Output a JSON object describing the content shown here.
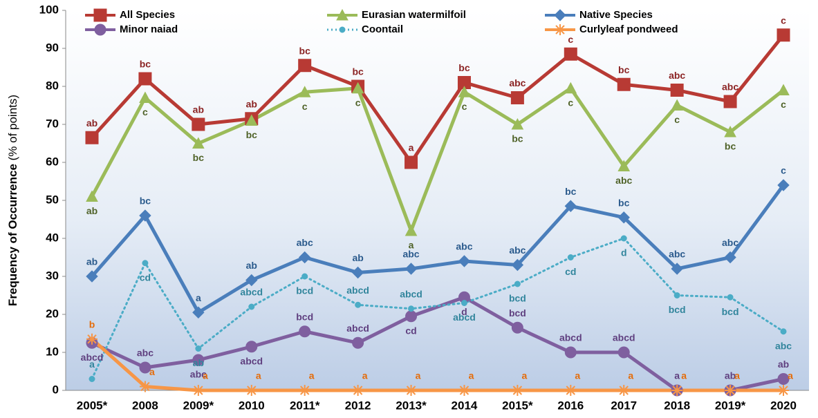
{
  "chart_data": {
    "type": "line",
    "ylabel": "Frequency of Occurrence",
    "ylabel_note": "(% of points)",
    "categories": [
      "2005*",
      "2008",
      "2009*",
      "2010",
      "2011*",
      "2012",
      "2013*",
      "2014",
      "2015*",
      "2016",
      "2017",
      "2018",
      "2019*",
      "2020"
    ],
    "ylim": [
      0,
      100
    ],
    "yticks": [
      0,
      10,
      20,
      30,
      40,
      50,
      60,
      70,
      80,
      90,
      100
    ],
    "grid": false,
    "series": [
      {
        "name": "All Species",
        "color": "#b83a34",
        "marker": "square",
        "letter_color": "#8b2323",
        "values": [
          66.5,
          82,
          70,
          71.5,
          85.5,
          80,
          60,
          81,
          77,
          88.5,
          80.5,
          79,
          76,
          93.5
        ],
        "letters": [
          "ab",
          "bc",
          "ab",
          "ab",
          "bc",
          "bc",
          "a",
          "bc",
          "abc",
          "c",
          "bc",
          "abc",
          "abc",
          "c"
        ]
      },
      {
        "name": "Eurasian watermilfoil",
        "color": "#9bbb59",
        "marker": "triangle",
        "letter_color": "#4f6228",
        "values": [
          51,
          77,
          65,
          71,
          78.5,
          79.5,
          42,
          78.5,
          70,
          79.5,
          59,
          75,
          68,
          79
        ],
        "letters": [
          "ab",
          "c",
          "bc",
          "bc",
          "c",
          "c",
          "a",
          "c",
          "bc",
          "c",
          "abc",
          "c",
          "bc",
          "c"
        ]
      },
      {
        "name": "Native Species",
        "color": "#4a7ebb",
        "marker": "diamond",
        "letter_color": "#2a5a8c",
        "values": [
          30,
          46,
          20.5,
          29,
          35,
          31,
          32,
          34,
          33,
          48.5,
          45.5,
          32,
          35,
          54
        ],
        "letters": [
          "ab",
          "bc",
          "a",
          "ab",
          "abc",
          "ab",
          "abc",
          "abc",
          "abc",
          "bc",
          "bc",
          "abc",
          "abc",
          "c"
        ]
      },
      {
        "name": "Minor naiad",
        "color": "#7f5f9f",
        "marker": "circle",
        "letter_color": "#5f3f7f",
        "values": [
          12.5,
          6,
          8,
          11.5,
          15.5,
          12.5,
          19.5,
          24.5,
          16.5,
          10,
          10,
          0,
          0,
          3
        ],
        "letters": [
          "abcd",
          "abc",
          "abc",
          "abcd",
          "bcd",
          "abcd",
          "cd",
          "d",
          "bcd",
          "abcd",
          "abcd",
          "a",
          "ab",
          "ab"
        ]
      },
      {
        "name": "Coontail",
        "color": "#4bacc6",
        "marker": "dot",
        "dashed": true,
        "letter_color": "#31859c",
        "values": [
          3,
          33.5,
          11,
          22,
          30,
          22.5,
          21.5,
          23,
          28,
          35,
          40,
          25,
          24.5,
          15.5
        ],
        "letters": [
          "a",
          "cd",
          "ab",
          "abcd",
          "bcd",
          "abcd",
          "abcd",
          "abcd",
          "bcd",
          "cd",
          "d",
          "bcd",
          "bcd",
          "abc"
        ]
      },
      {
        "name": "Curlyleaf pondweed",
        "color": "#f79646",
        "marker": "star",
        "letter_color": "#e46c0a",
        "values": [
          13.5,
          1,
          0,
          0,
          0,
          0,
          0,
          0,
          0,
          0,
          0,
          0,
          0,
          0
        ],
        "letters": [
          "b",
          "a",
          "a",
          "a",
          "a",
          "a",
          "a",
          "a",
          "a",
          "a",
          "a",
          "a",
          "a",
          "a"
        ]
      }
    ]
  }
}
